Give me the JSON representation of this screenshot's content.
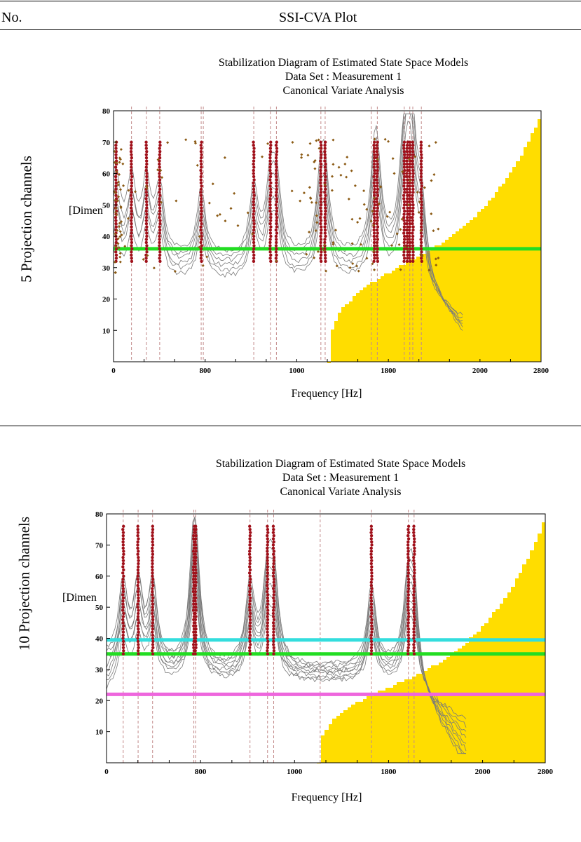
{
  "table": {
    "col_no": "No.",
    "col_plot": "SSI-CVA Plot"
  },
  "colors": {
    "stable": "#a0101a",
    "unstable": "#8b5a14",
    "region": "#ffdd00",
    "green_line": "#22dd22",
    "cyan_line": "#33dddd",
    "magenta_line": "#ee66dd",
    "curves": "#7a7a7a",
    "mode_lines": "#c28a8a"
  },
  "chart_data": [
    {
      "type": "scatter",
      "row_label": "5 Projection channels",
      "title": "Stabilization Diagram of Estimated State Space Models",
      "subtitle1": "Data Set : Measurement 1",
      "subtitle2": "Canonical Variate Analysis",
      "xlabel": "Frequency [Hz]",
      "ylabel": "[Dimen",
      "x_ticks": [
        "0",
        "",
        "",
        "800",
        "",
        "",
        "1000",
        "",
        "",
        "1800",
        "",
        "",
        "2000",
        "",
        "2800"
      ],
      "y_ticks": [
        "10",
        "20",
        "30",
        "40",
        "50",
        "60",
        "70",
        "80"
      ],
      "ylim": [
        0,
        80
      ],
      "stable_columns": [
        0.006,
        0.042,
        0.077,
        0.108,
        0.205,
        0.328,
        0.367,
        0.381,
        0.485,
        0.495,
        0.61,
        0.617,
        0.68,
        0.687,
        0.693,
        0.7,
        0.72
      ],
      "stable_order_range": [
        32,
        70
      ],
      "mode_lines": [
        0.042,
        0.077,
        0.108,
        0.205,
        0.21,
        0.328,
        0.367,
        0.381,
        0.485,
        0.495,
        0.603,
        0.617,
        0.68,
        0.693,
        0.7,
        0.72
      ],
      "horizontal_lines": [
        {
          "level": 36,
          "color": "green"
        }
      ]
    },
    {
      "type": "scatter",
      "row_label": "10 Projection channels",
      "title": "Stabilization Diagram of Estimated State Space Models",
      "subtitle1": "Data Set : Measurement 1",
      "subtitle2": "Canonical Variate Analysis",
      "xlabel": "Frequency [Hz]",
      "ylabel": "[Dimen",
      "x_ticks": [
        "0",
        "",
        "",
        "800",
        "",
        "",
        "1000",
        "",
        "",
        "1800",
        "",
        "",
        "2000",
        "",
        "2800"
      ],
      "y_ticks": [
        "10",
        "20",
        "30",
        "40",
        "50",
        "60",
        "70",
        "80"
      ],
      "ylim": [
        0,
        80
      ],
      "stable_columns": [
        0.038,
        0.072,
        0.105,
        0.199,
        0.203,
        0.327,
        0.367,
        0.381,
        0.604,
        0.688,
        0.701
      ],
      "stable_order_range": [
        35,
        76
      ],
      "mode_lines": [
        0.038,
        0.072,
        0.105,
        0.199,
        0.203,
        0.327,
        0.367,
        0.381,
        0.487,
        0.604,
        0.688,
        0.701
      ],
      "horizontal_lines": [
        {
          "level": 39.5,
          "color": "cyan"
        },
        {
          "level": 35,
          "color": "green"
        },
        {
          "level": 22,
          "color": "magenta"
        }
      ]
    }
  ]
}
